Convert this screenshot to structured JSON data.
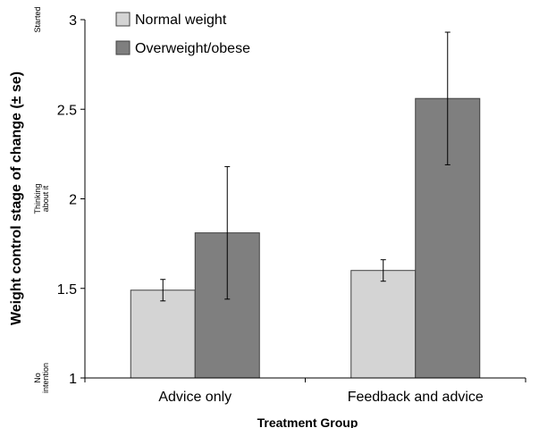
{
  "chart_data": {
    "type": "bar",
    "title": "",
    "xlabel": "Treatment Group",
    "ylabel": "Weight control stage of change (± se)",
    "ylim": [
      1,
      3
    ],
    "y_ticks": [
      "1",
      "1.5",
      "2",
      "2.5",
      "3"
    ],
    "y_tick_values": [
      1,
      1.5,
      2,
      2.5,
      3
    ],
    "stage_labels": [
      {
        "lines": [
          "No",
          "intention"
        ],
        "y": 1
      },
      {
        "lines": [
          "Thinking",
          "about it"
        ],
        "y": 2
      },
      {
        "lines": [
          "Started"
        ],
        "y": 3
      }
    ],
    "categories": [
      "Advice only",
      "Feedback and advice"
    ],
    "series": [
      {
        "name": "Normal weight",
        "color": "#d4d4d4",
        "values": [
          1.49,
          1.6
        ],
        "errors": [
          0.06,
          0.06
        ]
      },
      {
        "name": "Overweight/obese",
        "color": "#7f7f7f",
        "values": [
          1.81,
          2.56
        ],
        "errors": [
          0.37,
          0.37
        ]
      }
    ],
    "grid": false,
    "legend_position": "top-left"
  }
}
